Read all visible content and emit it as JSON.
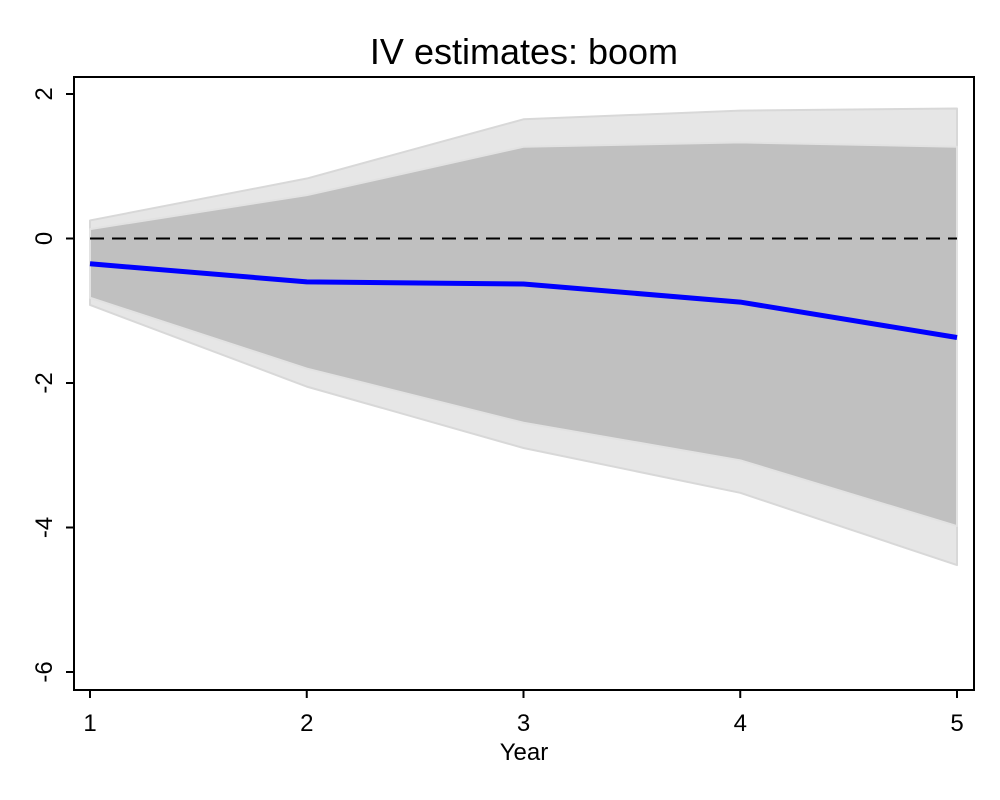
{
  "chart_data": {
    "type": "line",
    "title": "IV estimates: boom",
    "xlabel": "Year",
    "ylabel": "",
    "x": [
      1,
      2,
      3,
      4,
      5
    ],
    "xticks": [
      1,
      2,
      3,
      4,
      5
    ],
    "yticks": [
      2,
      0,
      -2,
      -4,
      -6
    ],
    "xlim": [
      1,
      5
    ],
    "ylim": [
      -6.2,
      2.25
    ],
    "grid": false,
    "legend": "none",
    "zero_line": {
      "y": 0,
      "style": "dashed",
      "color": "#000000"
    },
    "series": [
      {
        "role": "point estimate",
        "color": "#0000ff",
        "values": [
          -0.35,
          -0.6,
          -0.63,
          -0.88,
          -1.37
        ]
      }
    ],
    "bands": [
      {
        "role": "outer confidence band",
        "color": "#e6e6e6",
        "edge_color": "#d8d8d8",
        "lower": [
          -0.92,
          -2.05,
          -2.9,
          -3.52,
          -4.52
        ],
        "upper": [
          0.25,
          0.83,
          1.65,
          1.77,
          1.8
        ]
      },
      {
        "role": "inner confidence band",
        "color": "#c0c0c0",
        "edge_color": "#e2e2e2",
        "lower": [
          -0.82,
          -1.8,
          -2.55,
          -3.07,
          -3.98
        ],
        "upper": [
          0.13,
          0.6,
          1.27,
          1.33,
          1.27
        ]
      }
    ]
  }
}
